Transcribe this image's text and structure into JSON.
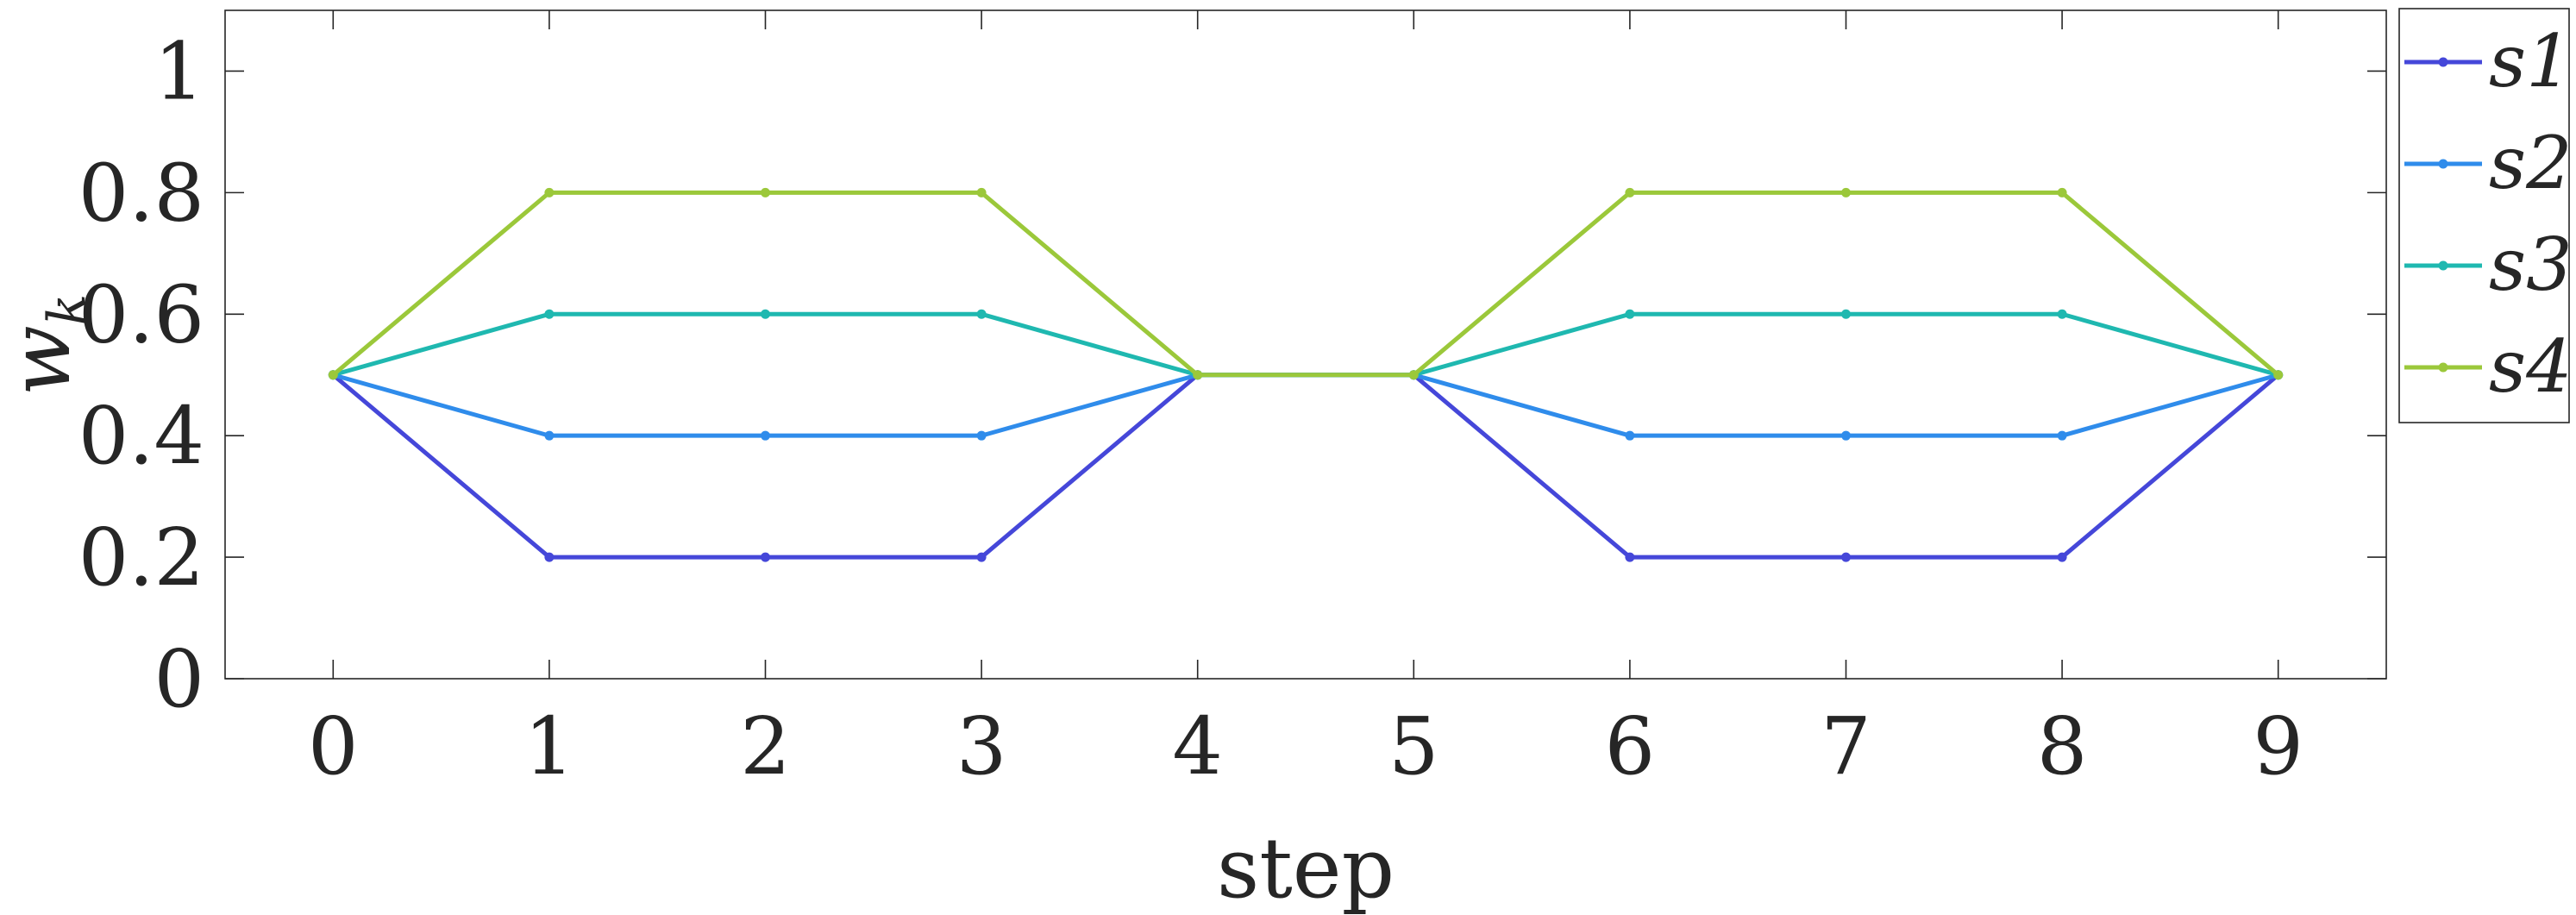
{
  "chart_data": {
    "type": "line",
    "x": [
      0,
      1,
      2,
      3,
      4,
      5,
      6,
      7,
      8,
      9
    ],
    "xticks": [
      "0",
      "1",
      "2",
      "3",
      "4",
      "5",
      "6",
      "7",
      "8",
      "9"
    ],
    "yticks": [
      "0",
      "0.2",
      "0.4",
      "0.6",
      "0.8",
      "1"
    ],
    "ytick_values": [
      0,
      0.2,
      0.4,
      0.6,
      0.8,
      1
    ],
    "xlim": [
      -0.5,
      9.5
    ],
    "ylim": [
      0,
      1.1
    ],
    "xlabel": "step",
    "ylabel_base": "w",
    "ylabel_sub": "k",
    "legend_position": "outside-right",
    "grid": false,
    "series": [
      {
        "name": "s1",
        "color": "#4547d9",
        "values": [
          0.5,
          0.2,
          0.2,
          0.2,
          0.5,
          0.5,
          0.2,
          0.2,
          0.2,
          0.5
        ]
      },
      {
        "name": "s2",
        "color": "#2f8ceb",
        "values": [
          0.5,
          0.4,
          0.4,
          0.4,
          0.5,
          0.5,
          0.4,
          0.4,
          0.4,
          0.5
        ]
      },
      {
        "name": "s3",
        "color": "#1fb8b0",
        "values": [
          0.5,
          0.6,
          0.6,
          0.6,
          0.5,
          0.5,
          0.6,
          0.6,
          0.6,
          0.5
        ]
      },
      {
        "name": "s4",
        "color": "#9bc83a",
        "values": [
          0.5,
          0.8,
          0.8,
          0.8,
          0.5,
          0.5,
          0.8,
          0.8,
          0.8,
          0.5
        ]
      }
    ]
  }
}
